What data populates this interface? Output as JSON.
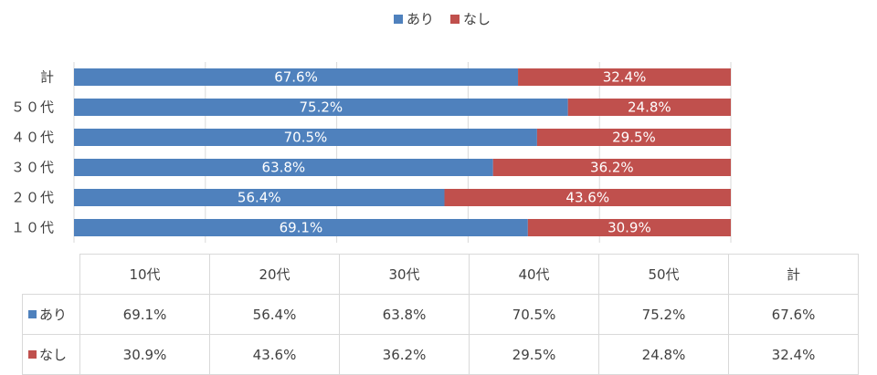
{
  "legend": [
    {
      "label": "あり",
      "color": "#4f81bd"
    },
    {
      "label": "なし",
      "color": "#c0504d"
    }
  ],
  "chart_data": {
    "type": "bar",
    "orientation": "horizontal",
    "stacked": true,
    "categories": [
      "計",
      "50代",
      "40代",
      "30代",
      "20代",
      "10代"
    ],
    "category_labels": [
      "計",
      "５０代",
      "４０代",
      "３０代",
      "２０代",
      "１０代"
    ],
    "series": [
      {
        "name": "あり",
        "color": "#4f81bd",
        "values": [
          67.6,
          75.2,
          70.5,
          63.8,
          56.4,
          69.1
        ],
        "labels": [
          "67.6%",
          "75.2%",
          "70.5%",
          "63.8%",
          "56.4%",
          "69.1%"
        ]
      },
      {
        "name": "なし",
        "color": "#c0504d",
        "values": [
          32.4,
          24.8,
          29.5,
          36.2,
          43.6,
          30.9
        ],
        "labels": [
          "32.4%",
          "24.8%",
          "29.5%",
          "36.2%",
          "43.6%",
          "30.9%"
        ]
      }
    ],
    "xlim": [
      0,
      100
    ],
    "grid": true,
    "legend_position": "top"
  },
  "table": {
    "columns": [
      "10代",
      "20代",
      "30代",
      "40代",
      "50代",
      "計"
    ],
    "rows": [
      {
        "label": "あり",
        "color": "#4f81bd",
        "values": [
          "69.1%",
          "56.4%",
          "63.8%",
          "70.5%",
          "75.2%",
          "67.6%"
        ]
      },
      {
        "label": "なし",
        "color": "#c0504d",
        "values": [
          "30.9%",
          "43.6%",
          "36.2%",
          "29.5%",
          "24.8%",
          "32.4%"
        ]
      }
    ]
  }
}
